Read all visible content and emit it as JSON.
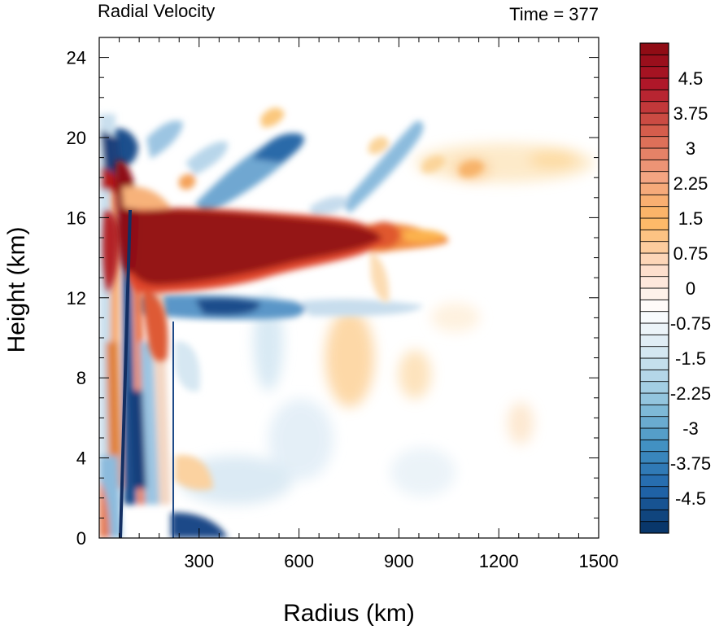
{
  "chart_data": {
    "type": "heatmap",
    "title_left": "Radial Velocity",
    "title_right": "Time = 377",
    "xlabel": "Radius (km)",
    "ylabel": "Height (km)",
    "xlim": [
      0,
      1500
    ],
    "ylim": [
      0,
      25
    ],
    "x_ticks": [
      300,
      600,
      900,
      1200,
      1500
    ],
    "x_tick_labels": [
      "300",
      "600",
      "900",
      "1200",
      "1500"
    ],
    "y_ticks": [
      0,
      4,
      8,
      12,
      16,
      20,
      24
    ],
    "y_tick_labels": [
      "0",
      "4",
      "8",
      "12",
      "16",
      "20",
      "24"
    ],
    "colorbar": {
      "min": -5.25,
      "max": 5.25,
      "interval": 0.25,
      "label_values": [
        4.5,
        3.75,
        3,
        2.25,
        1.5,
        0.75,
        0,
        -0.75,
        -1.5,
        -2.25,
        -3,
        -3.75,
        -4.5
      ],
      "labels": [
        "4.5",
        "3.75",
        "3",
        "2.25",
        "1.5",
        "0.75",
        "0",
        "-0.75",
        "-1.5",
        "-2.25",
        "-3",
        "-3.75",
        "-4.5"
      ],
      "colors": [
        "#053061",
        "#2166ac",
        "#4393c3",
        "#92c5de",
        "#d1e5f0",
        "#ffffff",
        "#fddbc7",
        "#fdb863",
        "#f4a582",
        "#d6604d",
        "#b2182b",
        "#8b0a12"
      ]
    },
    "features": [
      {
        "name": "upper-level outflow jet",
        "r0": 60,
        "r1": 850,
        "z": 14.3,
        "value": 5.2
      },
      {
        "name": "outflow tail",
        "r0": 850,
        "r1": 1050,
        "z": 15.0,
        "value": 2.4
      },
      {
        "name": "inflow below outflow",
        "r0": 150,
        "r1": 600,
        "z": 11.8,
        "value": -3.8
      },
      {
        "name": "upper inflow band",
        "r0": 250,
        "r1": 1000,
        "z": 19.5,
        "value": -2.6
      },
      {
        "name": "upper warm patch",
        "r0": 1050,
        "r1": 1500,
        "z": 20.0,
        "value": 1.0
      },
      {
        "name": "near-core alternating bands",
        "r0": 0,
        "r1": 230,
        "z0": 0,
        "z1": 21,
        "value": 3.5
      }
    ]
  }
}
